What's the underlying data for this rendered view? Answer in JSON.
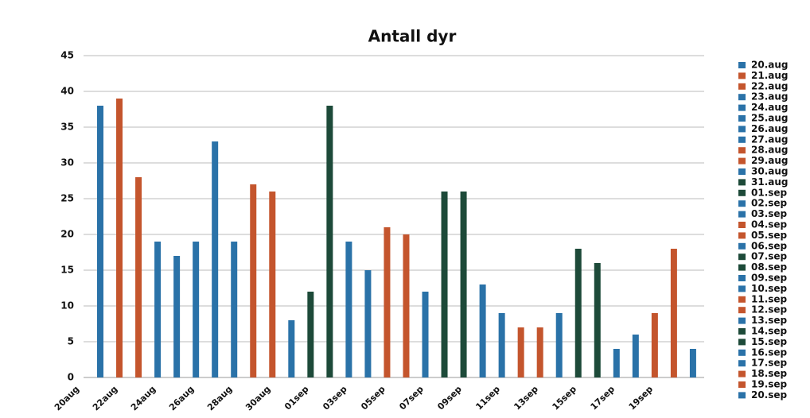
{
  "chart_data": {
    "type": "bar",
    "title": "Antall dyr",
    "categories": [
      "20aug",
      null,
      "22aug",
      null,
      "24aug",
      null,
      "26aug",
      null,
      "28aug",
      null,
      "30aug",
      null,
      "01sep",
      null,
      "03sep",
      null,
      "05sep",
      null,
      "07sep",
      null,
      "09sep",
      null,
      "11sep",
      null,
      "13sep",
      null,
      "15sep",
      null,
      "17sep",
      null,
      "19sep",
      null
    ],
    "values": [
      38,
      39,
      28,
      19,
      17,
      19,
      33,
      19,
      27,
      26,
      8,
      12,
      38,
      19,
      15,
      21,
      20,
      12,
      26,
      26,
      13,
      9,
      7,
      7,
      9,
      18,
      16,
      4,
      6,
      9,
      18,
      4
    ],
    "colors": [
      "#2a72a8",
      "#c4552d",
      "#c4552d",
      "#2a72a8",
      "#2a72a8",
      "#2a72a8",
      "#2a72a8",
      "#2a72a8",
      "#c4552d",
      "#c4552d",
      "#2a72a8",
      "#1d4a39",
      "#1d4a39",
      "#2a72a8",
      "#2a72a8",
      "#c4552d",
      "#c4552d",
      "#2a72a8",
      "#1d4a39",
      "#1d4a39",
      "#2a72a8",
      "#2a72a8",
      "#c4552d",
      "#c4552d",
      "#2a72a8",
      "#1d4a39",
      "#1d4a39",
      "#2a72a8",
      "#2a72a8",
      "#c4552d",
      "#c4552d",
      "#2a72a8"
    ],
    "legend": [
      "20.aug",
      "21.aug",
      "22.aug",
      "23.aug",
      "24.aug",
      "25.aug",
      "26.aug",
      "27.aug",
      "28.aug",
      "29.aug",
      "30.aug",
      "31.aug",
      "01.sep",
      "02.sep",
      "03.sep",
      "04.sep",
      "05.sep",
      "06.sep",
      "07.sep",
      "08.sep",
      "09.sep",
      "10.sep",
      "11.sep",
      "12.sep",
      "13.sep",
      "14.sep",
      "15.sep",
      "16.sep",
      "17.sep",
      "18.sep",
      "19.sep",
      "20.sep"
    ],
    "ylim": [
      0,
      45
    ],
    "yticks": [
      0,
      5,
      10,
      15,
      20,
      25,
      30,
      35,
      40,
      45
    ],
    "grid": true,
    "legend_position": "right"
  }
}
